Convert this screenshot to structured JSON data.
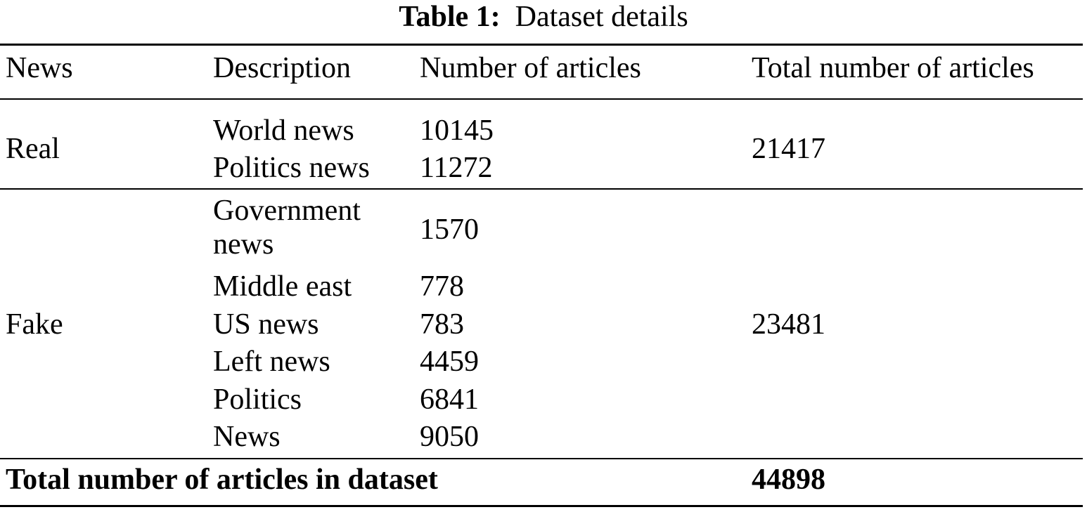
{
  "table": {
    "caption_label": "Table 1:",
    "caption_text": "Dataset details",
    "headers": [
      "News",
      "Description",
      "Number of articles",
      "Total number of articles"
    ],
    "groups": [
      {
        "news": "Real",
        "total": "21417",
        "rows": [
          {
            "description": "World news",
            "count": "10145"
          },
          {
            "description": "Politics news",
            "count": "11272"
          }
        ]
      },
      {
        "news": "Fake",
        "total": "23481",
        "rows": [
          {
            "description": "Government news",
            "count": "1570"
          },
          {
            "description": "Middle east",
            "count": "778"
          },
          {
            "description": "US news",
            "count": "783"
          },
          {
            "description": "Left news",
            "count": "4459"
          },
          {
            "description": "Politics",
            "count": "6841"
          },
          {
            "description": "News",
            "count": "9050"
          }
        ]
      }
    ],
    "footer": {
      "label": "Total number of articles in dataset",
      "total": "44898"
    }
  }
}
